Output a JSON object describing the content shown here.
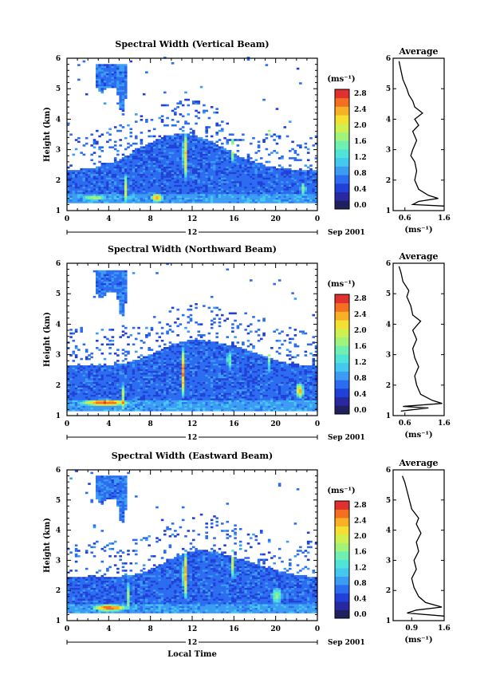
{
  "colors": {
    "scale": [
      "#202060",
      "#2828a0",
      "#2040d8",
      "#2c6cf0",
      "#3c9cf4",
      "#44c8f0",
      "#50e4d8",
      "#70f0b0",
      "#a0f47c",
      "#d0f050",
      "#f4e030",
      "#f8b024",
      "#f47020",
      "#e03030"
    ],
    "average_line": "#000000"
  },
  "chart_data": [
    {
      "type": "heatmap",
      "title": "Spectral Width (Vertical Beam)",
      "xlabel": "",
      "ylabel": "Height (km)",
      "x_ticks": [
        "0",
        "4",
        "8",
        "12",
        "16",
        "20",
        "0"
      ],
      "y_ticks": [
        "1",
        "2",
        "3",
        "4",
        "5",
        "6"
      ],
      "xlim": [
        0,
        24
      ],
      "ylim": [
        1,
        6
      ],
      "date_label": "12",
      "date_suffix": "Sep 2001",
      "colorbar": {
        "unit": "(ms⁻¹)",
        "ticks": [
          "0.0",
          "0.4",
          "0.8",
          "1.2",
          "1.6",
          "2.0",
          "2.4",
          "2.8"
        ],
        "range": [
          0,
          3.0
        ]
      },
      "average": {
        "title": "Average",
        "x_ticks": [
          "0.6",
          "1.6"
        ],
        "xlabel": "(ms⁻¹)",
        "xlim": [
          0.3,
          1.6
        ],
        "profile": [
          [
            1.15,
            1.6
          ],
          [
            1.2,
            0.8
          ],
          [
            1.3,
            0.95
          ],
          [
            1.4,
            1.45
          ],
          [
            1.5,
            1.2
          ],
          [
            1.7,
            0.95
          ],
          [
            2.0,
            0.85
          ],
          [
            2.3,
            0.9
          ],
          [
            2.6,
            0.85
          ],
          [
            2.8,
            0.75
          ],
          [
            3.0,
            0.8
          ],
          [
            3.3,
            0.9
          ],
          [
            3.6,
            0.8
          ],
          [
            3.8,
            0.95
          ],
          [
            4.0,
            0.85
          ],
          [
            4.2,
            1.05
          ],
          [
            4.4,
            0.85
          ],
          [
            4.6,
            0.8
          ],
          [
            4.8,
            0.7
          ],
          [
            5.0,
            0.65
          ],
          [
            5.3,
            0.55
          ],
          [
            5.6,
            0.5
          ],
          [
            5.9,
            0.45
          ]
        ]
      }
    },
    {
      "type": "heatmap",
      "title": "Spectral Width (Northward Beam)",
      "xlabel": "",
      "ylabel": "Height (km)",
      "x_ticks": [
        "0",
        "4",
        "8",
        "12",
        "16",
        "20",
        "0"
      ],
      "y_ticks": [
        "1",
        "2",
        "3",
        "4",
        "5",
        "6"
      ],
      "xlim": [
        0,
        24
      ],
      "ylim": [
        1,
        6
      ],
      "date_label": "12",
      "date_suffix": "Sep 2001",
      "colorbar": {
        "unit": "(ms⁻¹)",
        "ticks": [
          "0.0",
          "0.4",
          "0.8",
          "1.2",
          "1.6",
          "2.0",
          "2.4",
          "2.8"
        ],
        "range": [
          0,
          3.0
        ]
      },
      "average": {
        "title": "Average",
        "x_ticks": [
          "0.6",
          "1.6"
        ],
        "xlabel": "(ms⁻¹)",
        "xlim": [
          0.3,
          1.6
        ],
        "profile": [
          [
            1.15,
            0.5
          ],
          [
            1.25,
            1.2
          ],
          [
            1.3,
            0.55
          ],
          [
            1.4,
            1.55
          ],
          [
            1.5,
            1.3
          ],
          [
            1.7,
            1.0
          ],
          [
            2.0,
            0.9
          ],
          [
            2.3,
            0.85
          ],
          [
            2.6,
            0.95
          ],
          [
            2.9,
            0.85
          ],
          [
            3.2,
            0.8
          ],
          [
            3.5,
            0.9
          ],
          [
            3.8,
            0.8
          ],
          [
            4.1,
            1.0
          ],
          [
            4.3,
            0.8
          ],
          [
            4.6,
            0.75
          ],
          [
            4.9,
            0.65
          ],
          [
            5.1,
            0.7
          ],
          [
            5.4,
            0.55
          ],
          [
            5.7,
            0.5
          ],
          [
            5.9,
            0.45
          ]
        ]
      }
    },
    {
      "type": "heatmap",
      "title": "Spectral Width (Eastward Beam)",
      "xlabel": "Local Time",
      "ylabel": "Height (km)",
      "x_ticks": [
        "0",
        "4",
        "8",
        "12",
        "16",
        "20",
        "0"
      ],
      "y_ticks": [
        "1",
        "2",
        "3",
        "4",
        "5",
        "6"
      ],
      "xlim": [
        0,
        24
      ],
      "ylim": [
        1,
        6
      ],
      "date_label": "12",
      "date_suffix": "Sep 2001",
      "colorbar": {
        "unit": "(ms⁻¹)",
        "ticks": [
          "0.0",
          "0.4",
          "0.8",
          "1.2",
          "1.6",
          "2.0",
          "2.4",
          "2.8"
        ],
        "range": [
          0,
          3.0
        ]
      },
      "average": {
        "title": "Average",
        "x_ticks": [
          "0.9",
          "1.6"
        ],
        "xlabel": "(ms⁻¹)",
        "xlim": [
          0.5,
          1.6
        ],
        "profile": [
          [
            1.15,
            1.6
          ],
          [
            1.25,
            0.8
          ],
          [
            1.35,
            1.0
          ],
          [
            1.45,
            1.55
          ],
          [
            1.6,
            1.2
          ],
          [
            1.8,
            1.05
          ],
          [
            2.1,
            0.95
          ],
          [
            2.4,
            0.9
          ],
          [
            2.7,
            1.0
          ],
          [
            3.0,
            0.95
          ],
          [
            3.3,
            1.05
          ],
          [
            3.6,
            1.0
          ],
          [
            3.9,
            1.1
          ],
          [
            4.2,
            1.0
          ],
          [
            4.4,
            1.05
          ],
          [
            4.7,
            0.9
          ],
          [
            5.0,
            0.85
          ],
          [
            5.3,
            0.8
          ],
          [
            5.6,
            0.75
          ],
          [
            5.8,
            0.7
          ]
        ]
      }
    }
  ]
}
